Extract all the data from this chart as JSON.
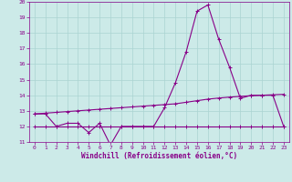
{
  "xlabel": "Windchill (Refroidissement éolien,°C)",
  "x": [
    0,
    1,
    2,
    3,
    4,
    5,
    6,
    7,
    8,
    9,
    10,
    11,
    12,
    13,
    14,
    15,
    16,
    17,
    18,
    19,
    20,
    21,
    22,
    23
  ],
  "line1": [
    12.8,
    12.8,
    12.0,
    12.2,
    12.2,
    11.6,
    12.2,
    10.8,
    12.0,
    12.0,
    12.0,
    12.0,
    13.2,
    14.8,
    16.8,
    19.4,
    19.8,
    17.6,
    15.8,
    13.8,
    14.0,
    14.0,
    14.0,
    12.0
  ],
  "line2": [
    12.8,
    12.85,
    12.9,
    12.95,
    13.0,
    13.05,
    13.1,
    13.15,
    13.2,
    13.25,
    13.3,
    13.35,
    13.4,
    13.45,
    13.55,
    13.65,
    13.75,
    13.82,
    13.88,
    13.93,
    13.97,
    14.0,
    14.03,
    14.06
  ],
  "line3": [
    12.0,
    12.0,
    12.0,
    12.0,
    12.0,
    12.0,
    12.0,
    12.0,
    12.0,
    12.0,
    12.0,
    12.0,
    12.0,
    12.0,
    12.0,
    12.0,
    12.0,
    12.0,
    12.0,
    12.0,
    12.0,
    12.0,
    12.0,
    12.0
  ],
  "line_color": "#880088",
  "bg_color": "#cceae8",
  "grid_color": "#aad4d2",
  "ylim": [
    11,
    20
  ],
  "yticks": [
    11,
    12,
    13,
    14,
    15,
    16,
    17,
    18,
    19,
    20
  ],
  "xticks": [
    0,
    1,
    2,
    3,
    4,
    5,
    6,
    7,
    8,
    9,
    10,
    11,
    12,
    13,
    14,
    15,
    16,
    17,
    18,
    19,
    20,
    21,
    22,
    23
  ],
  "marker": "+",
  "markersize": 3,
  "linewidth": 0.8
}
